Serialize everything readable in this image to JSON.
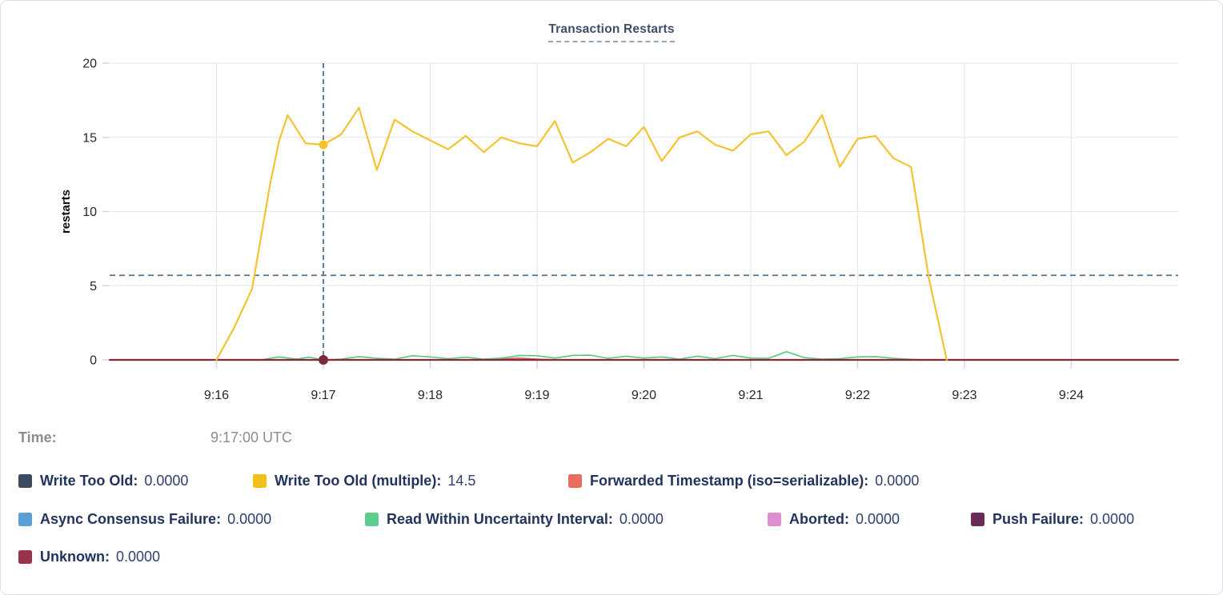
{
  "header": {
    "title": "Transaction Restarts"
  },
  "tooltip": {
    "time_label": "Time:",
    "time_value": "9:17:00 UTC"
  },
  "chart_data": {
    "type": "line",
    "title": "Transaction Restarts",
    "xlabel": "",
    "ylabel": "restarts",
    "ylim": [
      0,
      20
    ],
    "yticks": [
      0,
      5,
      10,
      15,
      20
    ],
    "x_domain_seconds": [
      0,
      600
    ],
    "x_domain_labels": [
      "9:15:00",
      "9:25:00"
    ],
    "xticks": [
      {
        "t": 60,
        "label": "9:16"
      },
      {
        "t": 120,
        "label": "9:17"
      },
      {
        "t": 180,
        "label": "9:18"
      },
      {
        "t": 240,
        "label": "9:19"
      },
      {
        "t": 300,
        "label": "9:20"
      },
      {
        "t": 360,
        "label": "9:21"
      },
      {
        "t": 420,
        "label": "9:22"
      },
      {
        "t": 480,
        "label": "9:23"
      },
      {
        "t": 540,
        "label": "9:24"
      }
    ],
    "grid": true,
    "legend_position": "bottom",
    "reference_line_value": 5.7,
    "crosshair": {
      "t": 120,
      "time": "9:17:00 UTC",
      "hovered_series": "Write Too Old (multiple)",
      "hovered_value": 14.5
    },
    "hover_dots": [
      {
        "series": "Write Too Old (multiple)",
        "t": 120,
        "v": 14.5,
        "color": "#f6c231"
      },
      {
        "series": "Unknown",
        "t": 120,
        "v": 0,
        "color": "#7e2a3e"
      }
    ],
    "series": [
      {
        "name": "Write Too Old",
        "color": "#3a4a63",
        "line_color": "#3a4a63",
        "width": 1.5,
        "points": [
          [
            60,
            0
          ],
          [
            470,
            0
          ]
        ]
      },
      {
        "name": "Forwarded Timestamp (iso=serializable)",
        "color": "#e96e5f",
        "line_color": "#dc5a4e",
        "width": 1.6,
        "points": [
          [
            60,
            0
          ],
          [
            210,
            0
          ],
          [
            220,
            0.06
          ],
          [
            230,
            0.12
          ],
          [
            240,
            0.05
          ],
          [
            250,
            0
          ],
          [
            470,
            0
          ]
        ]
      },
      {
        "name": "Async Consensus Failure",
        "color": "#5b9fd9",
        "line_color": "#5b9fd9",
        "width": 1.5,
        "points": [
          [
            60,
            0
          ],
          [
            470,
            0
          ]
        ]
      },
      {
        "name": "Aborted",
        "color": "#de8fd0",
        "line_color": "#de8fd0",
        "width": 1.5,
        "points": [
          [
            60,
            0
          ],
          [
            470,
            0
          ]
        ]
      },
      {
        "name": "Push Failure",
        "color": "#6b2b58",
        "line_color": "#6b2b58",
        "width": 1.5,
        "points": [
          [
            60,
            0
          ],
          [
            470,
            0
          ]
        ]
      },
      {
        "name": "Read Within Uncertainty Interval",
        "color": "#5fce8c",
        "line_color": "#53c77f",
        "width": 1.6,
        "points": [
          [
            85,
            0
          ],
          [
            95,
            0.2
          ],
          [
            105,
            0.05
          ],
          [
            112,
            0.18
          ],
          [
            120,
            0
          ],
          [
            130,
            0.05
          ],
          [
            140,
            0.22
          ],
          [
            150,
            0.1
          ],
          [
            160,
            0.05
          ],
          [
            170,
            0.28
          ],
          [
            180,
            0.2
          ],
          [
            190,
            0.08
          ],
          [
            200,
            0.18
          ],
          [
            210,
            0.05
          ],
          [
            220,
            0.12
          ],
          [
            230,
            0.3
          ],
          [
            240,
            0.28
          ],
          [
            250,
            0.12
          ],
          [
            260,
            0.3
          ],
          [
            270,
            0.32
          ],
          [
            280,
            0.1
          ],
          [
            290,
            0.25
          ],
          [
            300,
            0.12
          ],
          [
            310,
            0.2
          ],
          [
            320,
            0.05
          ],
          [
            330,
            0.25
          ],
          [
            340,
            0.08
          ],
          [
            350,
            0.3
          ],
          [
            360,
            0.12
          ],
          [
            370,
            0.1
          ],
          [
            380,
            0.55
          ],
          [
            390,
            0.15
          ],
          [
            400,
            0.05
          ],
          [
            410,
            0.08
          ],
          [
            420,
            0.2
          ],
          [
            430,
            0.22
          ],
          [
            440,
            0.1
          ],
          [
            450,
            0.04
          ],
          [
            460,
            0
          ],
          [
            470,
            0
          ]
        ]
      },
      {
        "name": "Unknown",
        "color": "#9a324a",
        "line_color": "#8b2638",
        "width": 2.2,
        "points": [
          [
            0,
            0
          ],
          [
            600,
            0
          ]
        ]
      },
      {
        "name": "Write Too Old (multiple)",
        "color": "#f2c118",
        "line_color": "#f6c231",
        "width": 2.2,
        "points": [
          [
            60,
            0
          ],
          [
            70,
            2.2
          ],
          [
            80,
            4.8
          ],
          [
            90,
            11.8
          ],
          [
            95,
            14.7
          ],
          [
            100,
            16.5
          ],
          [
            110,
            14.6
          ],
          [
            120,
            14.5
          ],
          [
            130,
            15.2
          ],
          [
            140,
            17.0
          ],
          [
            150,
            12.8
          ],
          [
            160,
            16.2
          ],
          [
            170,
            15.4
          ],
          [
            180,
            14.8
          ],
          [
            190,
            14.2
          ],
          [
            200,
            15.1
          ],
          [
            210,
            14.0
          ],
          [
            220,
            15.0
          ],
          [
            230,
            14.6
          ],
          [
            240,
            14.4
          ],
          [
            250,
            16.1
          ],
          [
            260,
            13.3
          ],
          [
            270,
            14.0
          ],
          [
            280,
            14.9
          ],
          [
            290,
            14.4
          ],
          [
            300,
            15.7
          ],
          [
            310,
            13.4
          ],
          [
            320,
            15.0
          ],
          [
            330,
            15.4
          ],
          [
            340,
            14.5
          ],
          [
            350,
            14.1
          ],
          [
            360,
            15.2
          ],
          [
            370,
            15.4
          ],
          [
            380,
            13.8
          ],
          [
            390,
            14.7
          ],
          [
            400,
            16.5
          ],
          [
            410,
            13.0
          ],
          [
            420,
            14.9
          ],
          [
            430,
            15.1
          ],
          [
            440,
            13.6
          ],
          [
            450,
            13.0
          ],
          [
            460,
            5.5
          ],
          [
            470,
            0
          ]
        ]
      }
    ]
  },
  "legend": {
    "rows": [
      [
        {
          "label": "Write Too Old:",
          "value": "0.0000",
          "color": "#3a4a63"
        },
        {
          "label": "Write Too Old (multiple):",
          "value": "14.5",
          "color": "#f2c118"
        },
        {
          "label": "Forwarded Timestamp (iso=serializable):",
          "value": "0.0000",
          "color": "#e96e5f"
        }
      ],
      [
        {
          "label": "Async Consensus Failure:",
          "value": "0.0000",
          "color": "#5b9fd9"
        },
        {
          "label": "Read Within Uncertainty Interval:",
          "value": "0.0000",
          "color": "#5fce8c"
        },
        {
          "label": "Aborted:",
          "value": "0.0000",
          "color": "#de8fd0"
        },
        {
          "label": "Push Failure:",
          "value": "0.0000",
          "color": "#6b2b58"
        }
      ],
      [
        {
          "label": "Unknown:",
          "value": "0.0000",
          "color": "#9a324a"
        }
      ]
    ]
  }
}
